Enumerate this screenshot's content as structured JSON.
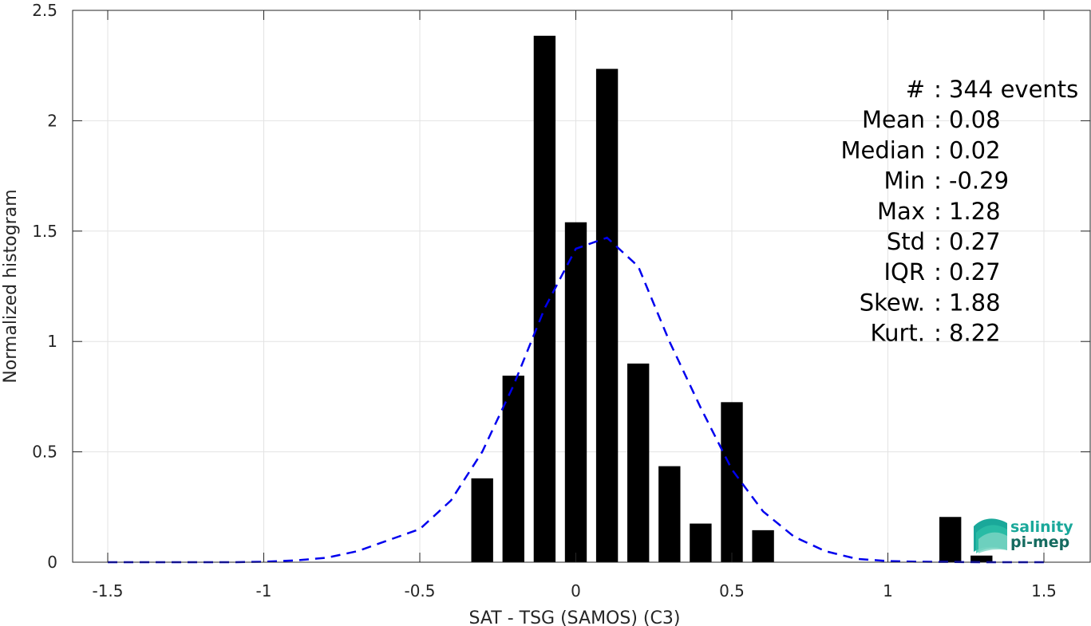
{
  "chart_data": {
    "type": "bar",
    "title": "",
    "xlabel": "SAT - TSG (SAMOS) (C3)",
    "ylabel": "Normalized histogram",
    "xlim": [
      -1.5,
      1.5
    ],
    "ylim": [
      0,
      2.5
    ],
    "xticks": [
      -1.5,
      -1,
      -0.5,
      0,
      0.5,
      1,
      1.5
    ],
    "xtick_labels": [
      "-1.5",
      "-1",
      "-0.5",
      "0",
      "0.5",
      "1",
      "1.5"
    ],
    "yticks": [
      0,
      0.5,
      1,
      1.5,
      2,
      2.5
    ],
    "ytick_labels": [
      "0",
      "0.5",
      "1",
      "1.5",
      "2",
      "2.5"
    ],
    "grid": true,
    "bar_width": 0.07,
    "bars": {
      "x": [
        -0.3,
        -0.2,
        -0.1,
        0.0,
        0.1,
        0.2,
        0.3,
        0.4,
        0.5,
        0.6,
        1.2,
        1.3
      ],
      "values": [
        0.38,
        0.845,
        2.385,
        1.54,
        2.235,
        0.9,
        0.435,
        0.175,
        0.725,
        0.145,
        0.205,
        0.03
      ],
      "color": "#000000"
    },
    "fit_curve": {
      "style": "dashed",
      "color": "#0000ee",
      "x": [
        -1.5,
        -1.4,
        -1.3,
        -1.2,
        -1.1,
        -1.0,
        -0.9,
        -0.8,
        -0.7,
        -0.6,
        -0.5,
        -0.4,
        -0.3,
        -0.2,
        -0.1,
        0.0,
        0.1,
        0.2,
        0.3,
        0.4,
        0.5,
        0.6,
        0.7,
        0.8,
        0.9,
        1.0,
        1.1,
        1.2,
        1.3,
        1.4,
        1.5
      ],
      "y": [
        0,
        0,
        0,
        0,
        0,
        0.002,
        0.008,
        0.02,
        0.05,
        0.1,
        0.15,
        0.28,
        0.5,
        0.8,
        1.15,
        1.42,
        1.47,
        1.34,
        1.0,
        0.7,
        0.42,
        0.23,
        0.115,
        0.05,
        0.015,
        0.005,
        0.002,
        0.001,
        0,
        0,
        0
      ]
    },
    "stats": [
      {
        "label": "#  ",
        "value": "344 events"
      },
      {
        "label": "Mean",
        "value": "0.08"
      },
      {
        "label": "Median",
        "value": "0.02"
      },
      {
        "label": "Min",
        "value": "-0.29"
      },
      {
        "label": "Max",
        "value": "1.28"
      },
      {
        "label": "Std",
        "value": "0.27"
      },
      {
        "label": "IQR",
        "value": "0.27"
      },
      {
        "label": "Skew.",
        "value": "1.88"
      },
      {
        "label": "Kurt.",
        "value": "8.22"
      }
    ]
  },
  "logo": {
    "line1": "salinity",
    "line2": "pi-mep",
    "color1": "#1aa89a",
    "color2": "#156b60"
  }
}
